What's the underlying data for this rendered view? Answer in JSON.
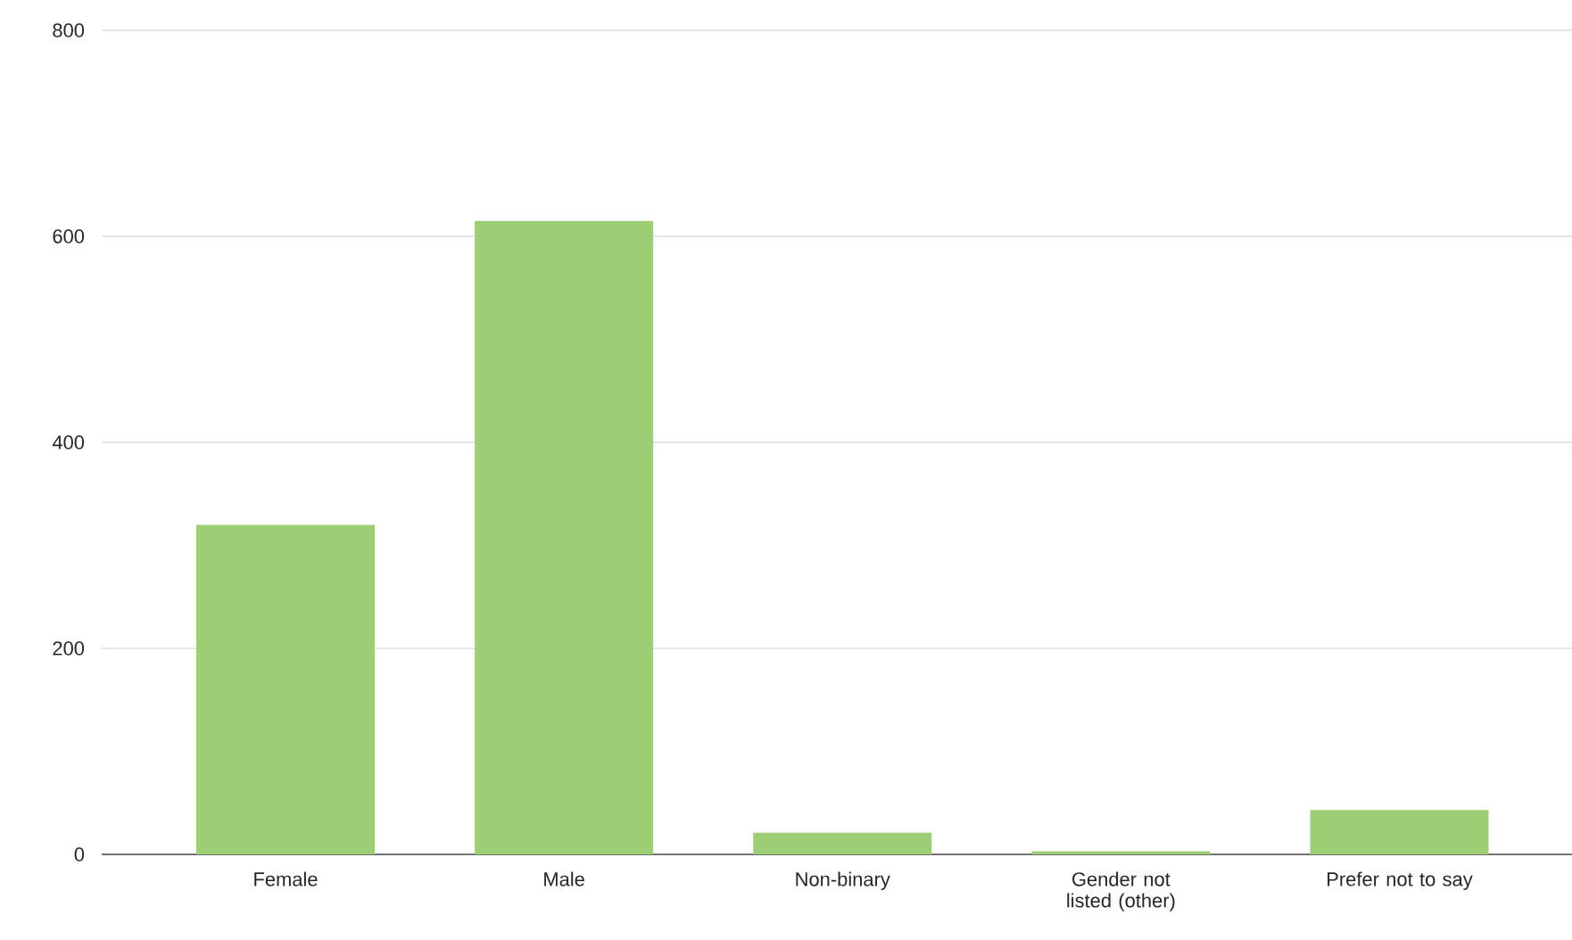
{
  "chart_data": {
    "type": "bar",
    "categories": [
      "Female",
      "Male",
      "Non-binary",
      "Gender not listed (other)",
      "Prefer not to say"
    ],
    "values": [
      320,
      615,
      21,
      3,
      43
    ],
    "color": "#9dce75",
    "ylim": [
      0,
      800
    ],
    "yticks": [
      0,
      200,
      400,
      600,
      800
    ],
    "grid": "y"
  }
}
